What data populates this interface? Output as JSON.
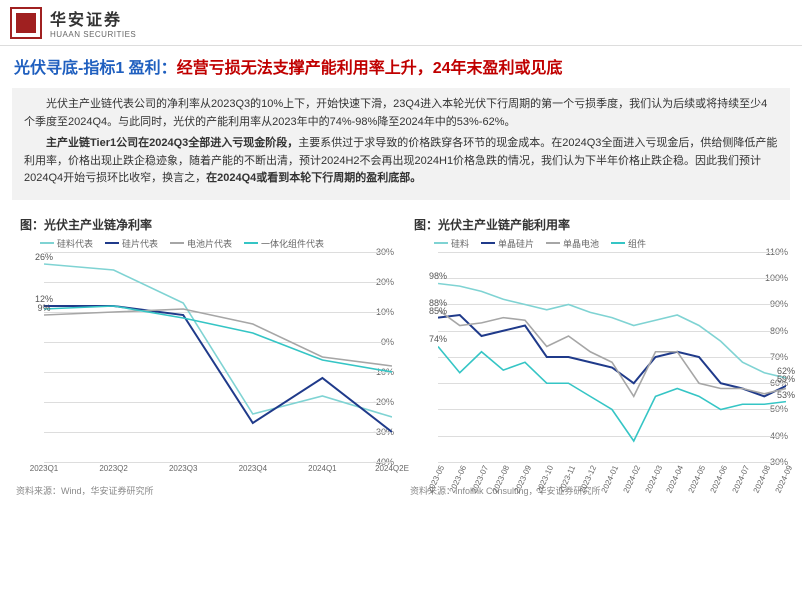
{
  "header": {
    "cn": "华安证券",
    "en": "HUAAN SECURITIES"
  },
  "title": {
    "seg1": "光伏寻底-指标1 盈利：",
    "seg2": "经营亏损无法支撑产能利用率上升，24年末盈利或见底"
  },
  "intro": {
    "p1_a": "光伏主产业链代表公司的净利率从2023Q3的10%上下，开始快速下滑，23Q4进入本轮光伏下行周期的第一个亏损季度，我们认为后续或将持续至少4个季度至2024Q4。",
    "p1_b": "与此同时，光伏的产能利用率从2023年中的74%-98%降至2024年中的53%-62%。",
    "p2_a": "主产业链Tier1公司在2024Q3全部进入亏现金阶段，",
    "p2_b": "主要系供过于求导致的价格跌穿各环节的现金成本。在2024Q3全面进入亏现金后，供给侧降低产能利用率，价格出现止跌企稳迹象，随着产能的不断出清，预计2024H2不会再出现2024H1价格急跌的情况，我们认为下半年价格止跌企稳。因此我们预计2024Q4开始亏损环比收窄，换言之，",
    "p2_c": "在2024Q4或看到本轮下行周期的盈利底部。"
  },
  "chart1": {
    "title": "图：光伏主产业链净利率",
    "type": "line",
    "xlabels": [
      "2023Q1",
      "2023Q2",
      "2023Q3",
      "2023Q4",
      "2024Q1",
      "2024Q2E"
    ],
    "ylim": [
      -40,
      30
    ],
    "ytick_step": 10,
    "series": [
      {
        "name": "硅料代表",
        "color": "#7fd3d3",
        "width": 1.6,
        "values": [
          26,
          24,
          13,
          -24,
          -18,
          -25
        ]
      },
      {
        "name": "硅片代表",
        "color": "#1f3a8a",
        "width": 2.0,
        "values": [
          12,
          12,
          9,
          -27,
          -12,
          -30
        ]
      },
      {
        "name": "电池片代表",
        "color": "#a6a6a6",
        "width": 1.6,
        "values": [
          9,
          10,
          11,
          6,
          -5,
          -8
        ]
      },
      {
        "name": "一体化组件代表",
        "color": "#35c5c5",
        "width": 1.6,
        "values": [
          11,
          12,
          8,
          3,
          -6,
          -10
        ]
      }
    ],
    "annotations": [
      [
        0,
        26,
        "26%"
      ],
      [
        0,
        12,
        "12%"
      ],
      [
        0,
        9,
        "9%"
      ]
    ],
    "source": "资料来源：Wind，华安证券研究所"
  },
  "chart2": {
    "title": "图：光伏主产业链产能利用率",
    "type": "line",
    "xlabels": [
      "2023-05",
      "2023-06",
      "2023-07",
      "2023-08",
      "2023-09",
      "2023-10",
      "2023-11",
      "2023-12",
      "2024-01",
      "2024-02",
      "2024-03",
      "2024-04",
      "2024-05",
      "2024-06",
      "2024-07",
      "2024-08",
      "2024-09"
    ],
    "ylim": [
      30,
      110
    ],
    "ytick_step": 10,
    "series": [
      {
        "name": "硅料",
        "color": "#7fd3d3",
        "width": 1.6,
        "values": [
          98,
          97,
          95,
          92,
          90,
          88,
          90,
          87,
          85,
          82,
          84,
          86,
          82,
          76,
          68,
          64,
          62
        ]
      },
      {
        "name": "单晶硅片",
        "color": "#1f3a8a",
        "width": 2.0,
        "values": [
          85,
          86,
          78,
          80,
          82,
          70,
          70,
          68,
          66,
          60,
          70,
          72,
          70,
          60,
          58,
          55,
          59
        ]
      },
      {
        "name": "单晶电池",
        "color": "#a6a6a6",
        "width": 1.6,
        "values": [
          88,
          82,
          83,
          85,
          84,
          74,
          78,
          72,
          68,
          55,
          72,
          72,
          60,
          58,
          58,
          56,
          58
        ]
      },
      {
        "name": "组件",
        "color": "#35c5c5",
        "width": 1.6,
        "values": [
          74,
          64,
          72,
          65,
          68,
          60,
          60,
          55,
          50,
          38,
          55,
          58,
          55,
          50,
          52,
          52,
          53
        ]
      }
    ],
    "annotations": [
      [
        0,
        98,
        "98%"
      ],
      [
        0,
        88,
        "88%"
      ],
      [
        0,
        85,
        "85%"
      ],
      [
        0,
        74,
        "74%"
      ],
      [
        16,
        62,
        "62%"
      ],
      [
        16,
        59,
        "59%"
      ],
      [
        16,
        53,
        "53%"
      ]
    ],
    "source": "资料来源：Infolink Consulting，华安证券研究所"
  }
}
